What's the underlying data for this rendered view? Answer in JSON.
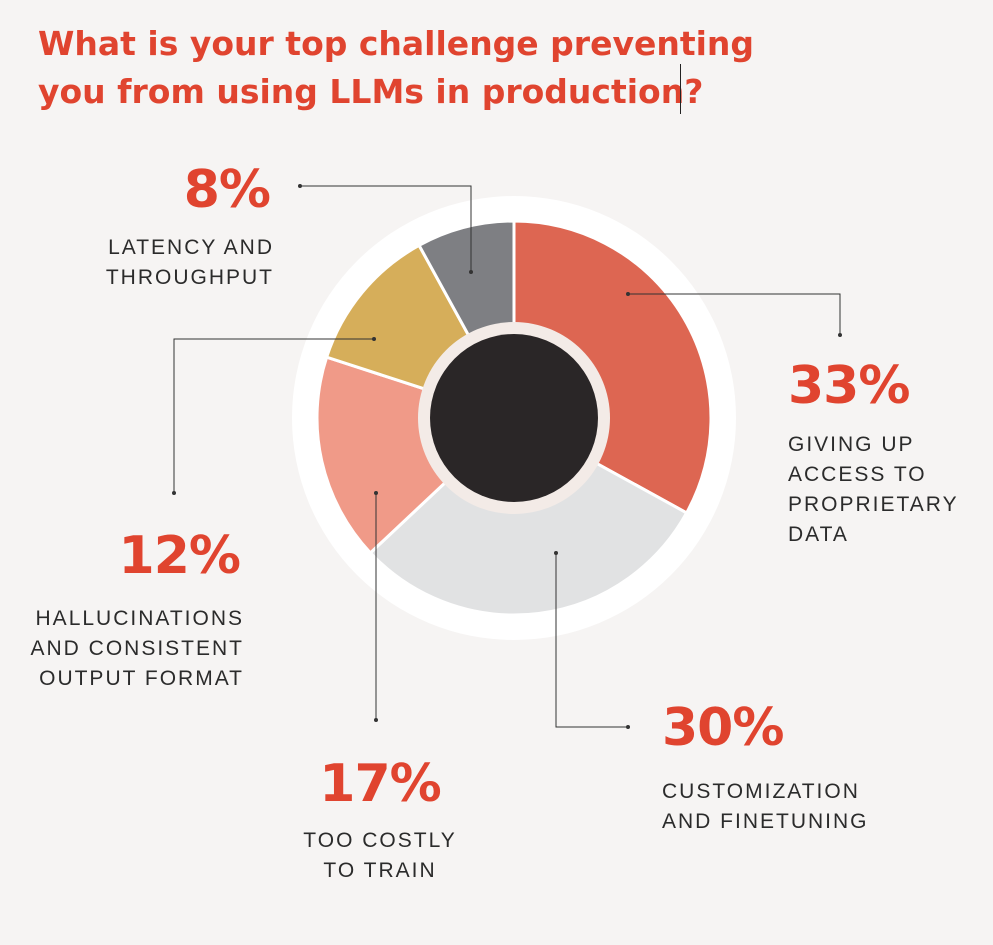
{
  "title_lines": [
    "What is your top challenge preventing",
    "you from using LLMs in production?"
  ],
  "chart_data": {
    "type": "pie",
    "donut": true,
    "slices": [
      {
        "value": 33,
        "percent_label": "33%",
        "label_lines": [
          "GIVING UP",
          "ACCESS TO",
          "PROPRIETARY",
          "DATA"
        ],
        "color": "#dd6652"
      },
      {
        "value": 30,
        "percent_label": "30%",
        "label_lines": [
          "CUSTOMIZATION",
          "AND FINETUNING"
        ],
        "color": "#e1e2e3"
      },
      {
        "value": 17,
        "percent_label": "17%",
        "label_lines": [
          "TOO COSTLY",
          "TO TRAIN"
        ],
        "color": "#f09a88"
      },
      {
        "value": 12,
        "percent_label": "12%",
        "label_lines": [
          "HALLUCINATIONS",
          "AND CONSISTENT",
          "OUTPUT FORMAT"
        ],
        "color": "#d6ae5a"
      },
      {
        "value": 8,
        "percent_label": "8%",
        "label_lines": [
          "LATENCY AND",
          "THROUGHPUT"
        ],
        "color": "#7e7f83"
      }
    ],
    "colors": {
      "background": "#f6f4f3",
      "outer_ring": "#ffffff",
      "inner_ring": "#f3ebe7",
      "center": "#2a2627",
      "accent": "#e0442f",
      "leader": "#333333"
    }
  }
}
